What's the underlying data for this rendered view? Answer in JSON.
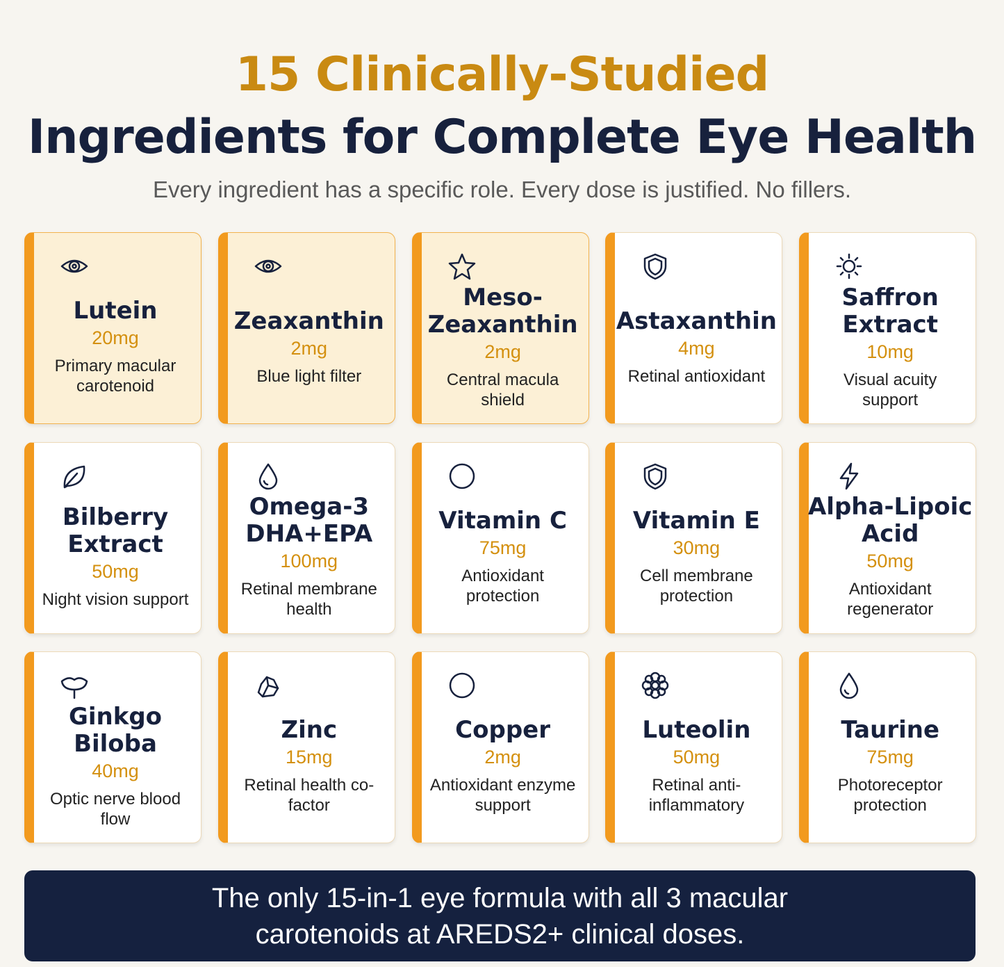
{
  "header": {
    "title_line1": "15 Clinically-Studied",
    "title_line2": "Ingredients for Complete Eye Health",
    "subtitle": "Every ingredient has a specific role. Every dose is justified. No fillers."
  },
  "cards": [
    {
      "name": "Lutein",
      "dose": "20mg",
      "role": "Primary macular carotenoid"
    },
    {
      "name": "Zeaxanthin",
      "dose": "2mg",
      "role": "Blue light filter"
    },
    {
      "name": "Meso-Zeaxanthin",
      "dose": "2mg",
      "role": "Central macula shield"
    },
    {
      "name": "Astaxanthin",
      "dose": "4mg",
      "role": "Retinal antioxidant"
    },
    {
      "name": "Saffron Extract",
      "dose": "10mg",
      "role": "Visual acuity support"
    },
    {
      "name": "Bilberry Extract",
      "dose": "50mg",
      "role": "Night vision support"
    },
    {
      "name": "Omega-3 DHA+EPA",
      "dose": "100mg",
      "role": "Retinal membrane health"
    },
    {
      "name": "Vitamin C",
      "dose": "75mg",
      "role": "Antioxidant protection"
    },
    {
      "name": "Vitamin E",
      "dose": "30mg",
      "role": "Cell membrane protection"
    },
    {
      "name": "Alpha-Lipoic Acid",
      "dose": "50mg",
      "role": "Antioxidant regenerator"
    },
    {
      "name": "Ginkgo Biloba",
      "dose": "40mg",
      "role": "Optic nerve blood flow"
    },
    {
      "name": "Zinc",
      "dose": "15mg",
      "role": "Retinal health co-factor"
    },
    {
      "name": "Copper",
      "dose": "2mg",
      "role": "Antioxidant enzyme support"
    },
    {
      "name": "Luteolin",
      "dose": "50mg",
      "role": "Retinal anti-inflammatory"
    },
    {
      "name": "Taurine",
      "dose": "75mg",
      "role": "Photoreceptor protection"
    }
  ],
  "footer": {
    "text": "The only 15-in-1 eye formula with all 3 macular carotenoids at AREDS2+ clinical doses."
  }
}
